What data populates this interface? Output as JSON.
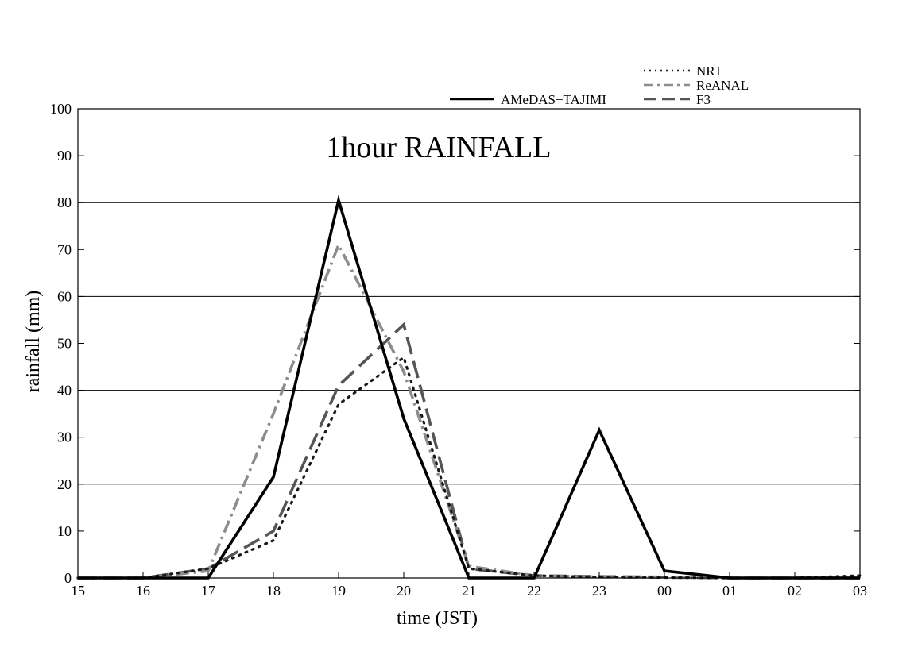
{
  "chart_data": {
    "type": "line",
    "title": "1hour RAINFALL",
    "xlabel": "time (JST)",
    "ylabel": "rainfall (mm)",
    "categories": [
      "15",
      "16",
      "17",
      "18",
      "19",
      "20",
      "21",
      "22",
      "23",
      "00",
      "01",
      "02",
      "03"
    ],
    "ylim": [
      0,
      100
    ],
    "yticks": [
      0,
      10,
      20,
      30,
      40,
      50,
      60,
      70,
      80,
      90,
      100
    ],
    "gridlines_y": [
      20,
      40,
      60,
      80
    ],
    "legend_position": "top-right",
    "series": [
      {
        "name": "AMeDAS−TAJIMI",
        "style": "solid",
        "color": "#000000",
        "values": [
          0,
          0,
          0,
          21.5,
          80.5,
          34,
          0,
          0,
          31.5,
          1.5,
          0,
          0,
          0
        ]
      },
      {
        "name": "NRT",
        "style": "dotted",
        "color": "#1a1a1a",
        "values": [
          0,
          0,
          2,
          8,
          37,
          47,
          2,
          0.5,
          0.2,
          0.1,
          0,
          0,
          0.5
        ]
      },
      {
        "name": "ReANAL",
        "style": "dashdot",
        "color": "#8c8c8c",
        "values": [
          0,
          0,
          1.5,
          35,
          71,
          44,
          2.5,
          0.5,
          0.2,
          0.1,
          0,
          0,
          0
        ]
      },
      {
        "name": "F3",
        "style": "dashed",
        "color": "#555555",
        "values": [
          0,
          0,
          2,
          10,
          41,
          54,
          2,
          0.5,
          0.3,
          0.2,
          0,
          0,
          0
        ]
      }
    ]
  }
}
